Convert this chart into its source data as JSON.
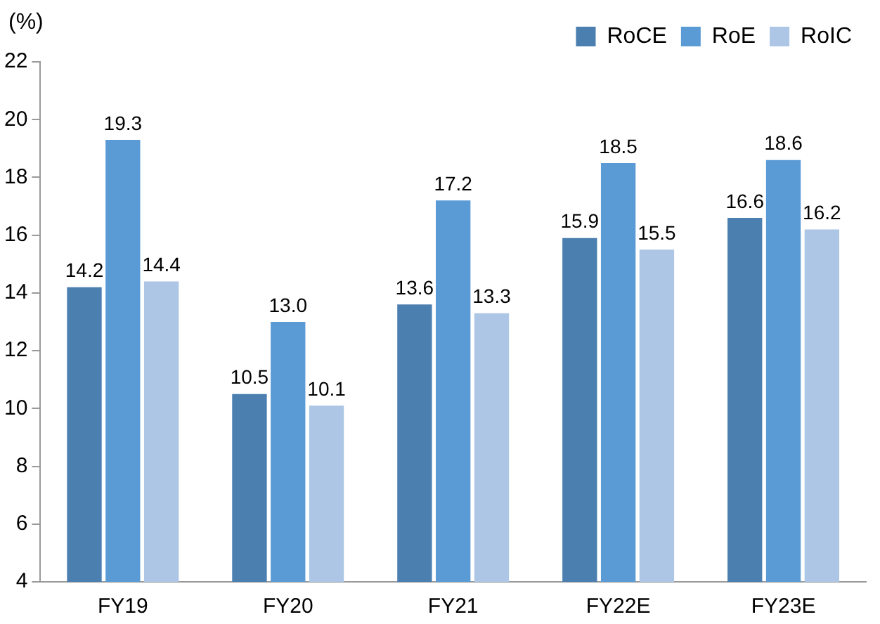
{
  "chart_data": {
    "type": "bar",
    "ylabel": "(%)",
    "categories": [
      "FY19",
      "FY20",
      "FY21",
      "FY22E",
      "FY23E"
    ],
    "series": [
      {
        "name": "RoCE",
        "color": "#4a7fb0",
        "values": [
          14.2,
          10.5,
          13.6,
          15.9,
          16.6
        ],
        "value_labels": [
          "14.2",
          "10.5",
          "13.6",
          "15.9",
          "16.6"
        ]
      },
      {
        "name": "RoE",
        "color": "#5b9bd5",
        "values": [
          19.3,
          13.0,
          17.2,
          18.5,
          18.6
        ],
        "value_labels": [
          "19.3",
          "13.0",
          "17.2",
          "18.5",
          "18.6"
        ]
      },
      {
        "name": "RoIC",
        "color": "#adc6e6",
        "values": [
          14.4,
          10.1,
          13.3,
          15.5,
          16.2
        ],
        "value_labels": [
          "14.4",
          "10.1",
          "13.3",
          "15.5",
          "16.2"
        ]
      }
    ],
    "ylim": [
      4,
      22
    ],
    "yticks": [
      4,
      6,
      8,
      10,
      12,
      14,
      16,
      18,
      20,
      22
    ],
    "grid": false,
    "legend": "top right"
  }
}
